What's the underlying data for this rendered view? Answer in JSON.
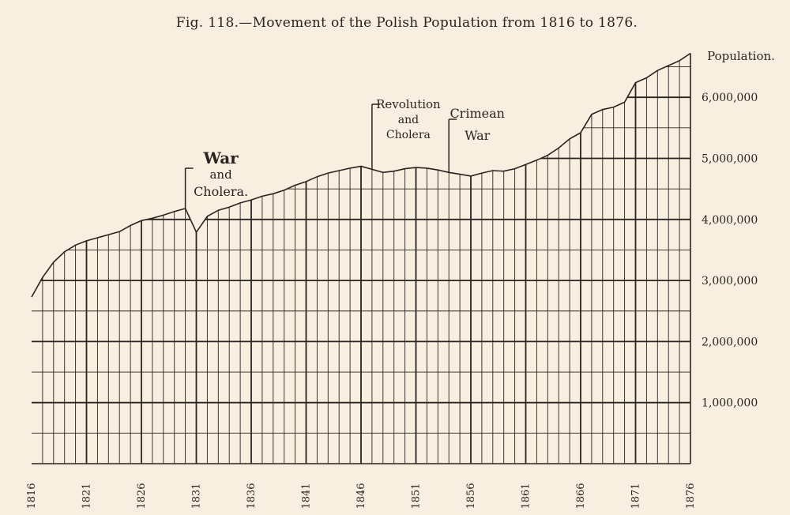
{
  "chart_data": {
    "type": "area",
    "title": "Fig. 118.—Movement of the Polish Population from 1816 to 1876.",
    "ylabel": "Population.",
    "xlim": [
      1816,
      1876
    ],
    "ylim": [
      0,
      6800000
    ],
    "x_ticks": [
      1816,
      1821,
      1826,
      1831,
      1836,
      1841,
      1846,
      1851,
      1856,
      1861,
      1866,
      1871,
      1876
    ],
    "y_ticks": [
      {
        "value": 1000000,
        "label": "1,000,000"
      },
      {
        "value": 2000000,
        "label": "2,000,000"
      },
      {
        "value": 3000000,
        "label": "3,000,000"
      },
      {
        "value": 4000000,
        "label": "4,000,000"
      },
      {
        "value": 5000000,
        "label": "5,000,000"
      },
      {
        "value": 6000000,
        "label": "6,000,000"
      }
    ],
    "grid": true,
    "x": [
      1816,
      1817,
      1818,
      1819,
      1820,
      1821,
      1822,
      1823,
      1824,
      1825,
      1826,
      1827,
      1828,
      1829,
      1830,
      1831,
      1832,
      1833,
      1834,
      1835,
      1836,
      1837,
      1838,
      1839,
      1840,
      1841,
      1842,
      1843,
      1844,
      1845,
      1846,
      1847,
      1848,
      1849,
      1850,
      1851,
      1852,
      1853,
      1854,
      1855,
      1856,
      1857,
      1858,
      1859,
      1860,
      1861,
      1862,
      1863,
      1864,
      1865,
      1866,
      1867,
      1868,
      1869,
      1870,
      1871,
      1872,
      1873,
      1874,
      1875,
      1876
    ],
    "values": [
      2730000,
      3050000,
      3300000,
      3470000,
      3580000,
      3650000,
      3700000,
      3750000,
      3800000,
      3900000,
      3980000,
      4020000,
      4070000,
      4130000,
      4180000,
      3790000,
      4050000,
      4150000,
      4200000,
      4270000,
      4320000,
      4380000,
      4420000,
      4480000,
      4560000,
      4620000,
      4700000,
      4760000,
      4800000,
      4840000,
      4870000,
      4820000,
      4770000,
      4790000,
      4830000,
      4850000,
      4840000,
      4810000,
      4770000,
      4740000,
      4710000,
      4760000,
      4800000,
      4790000,
      4830000,
      4900000,
      4970000,
      5050000,
      5170000,
      5320000,
      5420000,
      5720000,
      5800000,
      5840000,
      5920000,
      6240000,
      6320000,
      6440000,
      6520000,
      6600000,
      6720000
    ],
    "annotations": [
      {
        "year": 1830,
        "lines": [
          "War",
          "and",
          "Cholera."
        ]
      },
      {
        "year": 1847,
        "lines": [
          "Revolution",
          "and",
          "Cholera"
        ]
      },
      {
        "year": 1854,
        "lines": [
          "Crimean",
          "War"
        ]
      }
    ],
    "fill_color": "#f8efe0",
    "line_color": "#2a2420",
    "background": "#f8efe0"
  }
}
